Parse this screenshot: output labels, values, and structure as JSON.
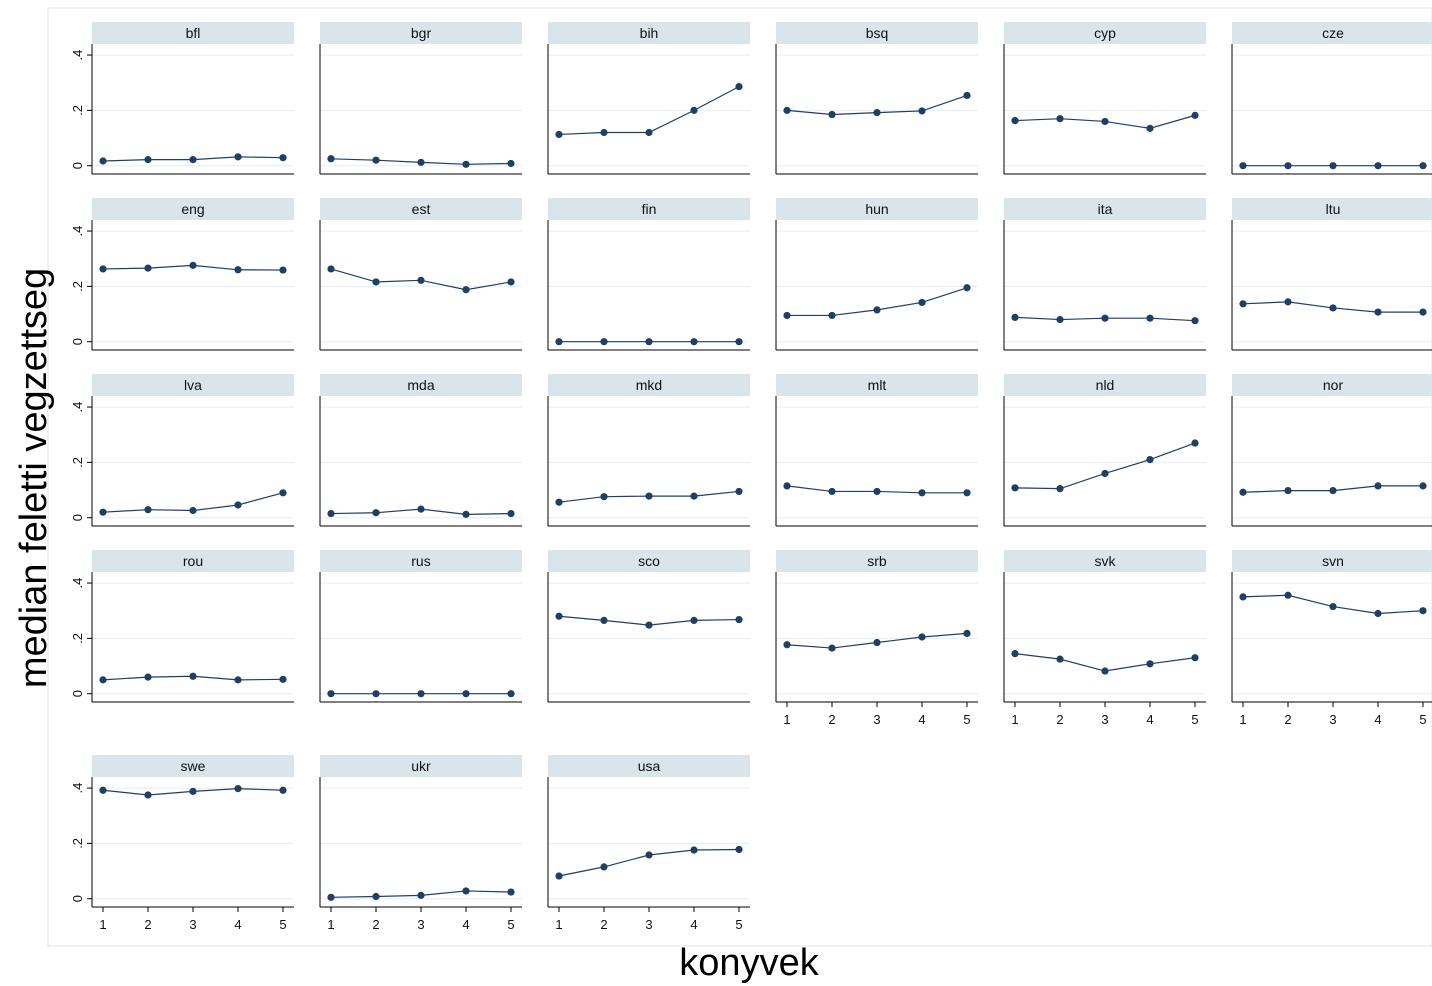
{
  "chart_data": {
    "type": "line",
    "xlabel": "konyvek",
    "ylabel": "median feletti vegzettseg",
    "x": [
      1,
      2,
      3,
      4,
      5
    ],
    "x_ticks": [
      "1",
      "2",
      "3",
      "4",
      "5"
    ],
    "y_ticks": [
      "0",
      ".2",
      ".4"
    ],
    "ylim": [
      -0.03,
      0.44
    ],
    "grid": true,
    "colors": {
      "line": "#1f3f66",
      "marker": "#1f3f66",
      "strip_fill": "#d9e4eb",
      "grid": "#e6eef2",
      "frame": "#000000"
    },
    "panels": [
      {
        "name": "bfl",
        "values": [
          0.017,
          0.022,
          0.022,
          0.032,
          0.029
        ]
      },
      {
        "name": "bgr",
        "values": [
          0.025,
          0.02,
          0.012,
          0.005,
          0.008
        ]
      },
      {
        "name": "bih",
        "values": [
          0.113,
          0.12,
          0.12,
          0.2,
          0.286
        ]
      },
      {
        "name": "bsq",
        "values": [
          0.2,
          0.185,
          0.192,
          0.198,
          0.254
        ]
      },
      {
        "name": "cyp",
        "values": [
          0.163,
          0.17,
          0.16,
          0.135,
          0.182
        ]
      },
      {
        "name": "cze",
        "values": [
          0.0,
          0.0,
          0.0,
          0.0,
          0.0
        ]
      },
      {
        "name": "eng",
        "values": [
          0.263,
          0.266,
          0.276,
          0.26,
          0.259
        ]
      },
      {
        "name": "est",
        "values": [
          0.263,
          0.216,
          0.222,
          0.188,
          0.216
        ]
      },
      {
        "name": "fin",
        "values": [
          0.0,
          0.0,
          0.0,
          0.0,
          0.0
        ]
      },
      {
        "name": "hun",
        "values": [
          0.095,
          0.095,
          0.115,
          0.142,
          0.195
        ]
      },
      {
        "name": "ita",
        "values": [
          0.088,
          0.08,
          0.085,
          0.085,
          0.076
        ]
      },
      {
        "name": "ltu",
        "values": [
          0.137,
          0.144,
          0.122,
          0.107,
          0.107
        ]
      },
      {
        "name": "lva",
        "values": [
          0.02,
          0.029,
          0.026,
          0.046,
          0.09
        ]
      },
      {
        "name": "mda",
        "values": [
          0.015,
          0.018,
          0.031,
          0.012,
          0.015
        ]
      },
      {
        "name": "mkd",
        "values": [
          0.056,
          0.076,
          0.078,
          0.078,
          0.095
        ]
      },
      {
        "name": "mlt",
        "values": [
          0.115,
          0.095,
          0.095,
          0.09,
          0.09
        ]
      },
      {
        "name": "nld",
        "values": [
          0.108,
          0.105,
          0.16,
          0.21,
          0.27
        ]
      },
      {
        "name": "nor",
        "values": [
          0.092,
          0.098,
          0.098,
          0.115,
          0.115
        ]
      },
      {
        "name": "rou",
        "values": [
          0.05,
          0.06,
          0.063,
          0.05,
          0.052
        ]
      },
      {
        "name": "rus",
        "values": [
          0.0,
          0.0,
          0.0,
          0.0,
          0.0
        ]
      },
      {
        "name": "sco",
        "values": [
          0.28,
          0.265,
          0.248,
          0.265,
          0.268
        ]
      },
      {
        "name": "srb",
        "values": [
          0.177,
          0.165,
          0.185,
          0.205,
          0.218
        ]
      },
      {
        "name": "svk",
        "values": [
          0.145,
          0.125,
          0.082,
          0.108,
          0.13
        ]
      },
      {
        "name": "svn",
        "values": [
          0.35,
          0.356,
          0.315,
          0.29,
          0.3
        ]
      },
      {
        "name": "swe",
        "values": [
          0.392,
          0.375,
          0.388,
          0.398,
          0.392
        ]
      },
      {
        "name": "ukr",
        "values": [
          0.005,
          0.008,
          0.012,
          0.028,
          0.024
        ]
      },
      {
        "name": "usa",
        "values": [
          0.082,
          0.115,
          0.158,
          0.176,
          0.178
        ]
      }
    ]
  }
}
